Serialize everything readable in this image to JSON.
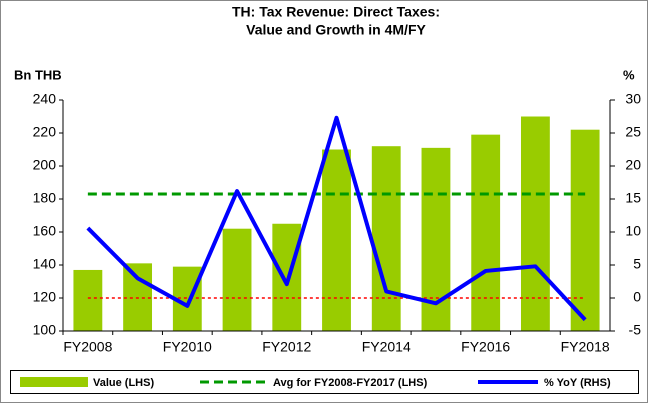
{
  "chart_data": {
    "type": "bar_line",
    "title": [
      "TH: Tax Revenue: Direct Taxes:",
      "Value and Growth in 4M/FY"
    ],
    "y_label": "Bn THB",
    "y2_label": "%",
    "categories": [
      "FY2008",
      null,
      "FY2010",
      null,
      "FY2012",
      null,
      "FY2014",
      null,
      "FY2016",
      null,
      "FY2018"
    ],
    "series": [
      {
        "name": "Value (LHS)",
        "type": "bar",
        "color": "#99cc00",
        "values": [
          137,
          141,
          139,
          162,
          165,
          210,
          212,
          211,
          219,
          230,
          222
        ]
      },
      {
        "name": "Avg for FY2008-FY2017 (LHS)",
        "type": "hline",
        "color": "#009900",
        "value": 183
      },
      {
        "name": "% YoY (RHS)",
        "type": "line",
        "axis": "y2",
        "color": "#0000ff",
        "values": [
          10.6,
          3,
          -1.2,
          16.2,
          2.1,
          27.3,
          1,
          -0.8,
          4.1,
          4.8,
          -3.3
        ]
      }
    ],
    "reference_line": {
      "value": 0,
      "axis": "y2",
      "color": "#ff0000"
    },
    "ylim": [
      100,
      240
    ],
    "yticks": [
      100,
      120,
      140,
      160,
      180,
      200,
      220,
      240
    ],
    "y2lim": [
      -5,
      30
    ],
    "y2ticks": [
      -5,
      0,
      5,
      10,
      15,
      20,
      25,
      30
    ],
    "legend": "bottom"
  }
}
